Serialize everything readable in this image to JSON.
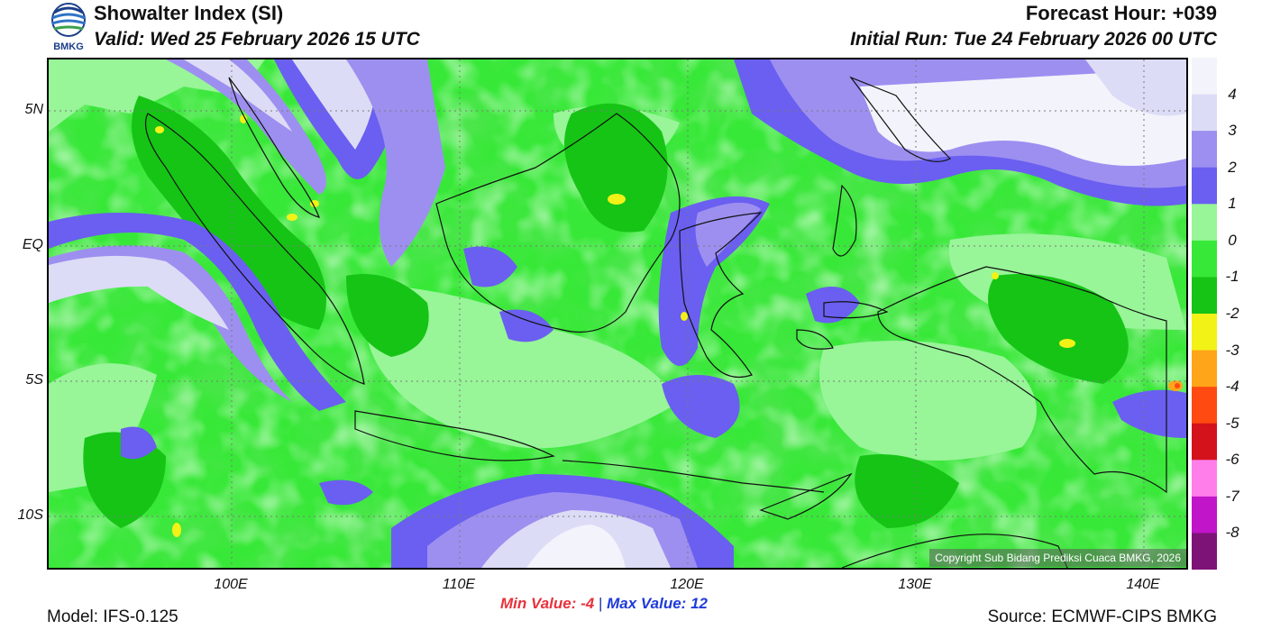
{
  "header": {
    "title": "Showalter Index (SI)",
    "valid": "Valid: Wed 25 February 2026 15 UTC",
    "forecast_hour": "Forecast Hour: +039",
    "initial_run": "Initial Run: Tue 24 February 2026 00 UTC",
    "logo_text": "BMKG"
  },
  "map": {
    "lat_labels": [
      "5N",
      "EQ",
      "5S",
      "10S"
    ],
    "lon_labels": [
      "100E",
      "110E",
      "120E",
      "130E",
      "140E"
    ],
    "copyright": "Copyright Sub Bidang Prediksi Cuaca BMKG, 2026"
  },
  "stats": {
    "min_label": "Min Value:",
    "min_value": "-4",
    "separator": "|",
    "max_label": "Max Value:",
    "max_value": "12"
  },
  "legend": {
    "labels": [
      "4",
      "3",
      "2",
      "1",
      "0",
      "-1",
      "-2",
      "-3",
      "-4",
      "-5",
      "-6",
      "-7",
      "-8"
    ],
    "colors": [
      "#f3f3fb",
      "#dcdcf6",
      "#9d8ff0",
      "#6a5ff0",
      "#98f598",
      "#38e838",
      "#16c416",
      "#f2f216",
      "#ffa51a",
      "#ff4a12",
      "#d4121c",
      "#ff7eea",
      "#c015c8",
      "#7d1376"
    ]
  },
  "footer": {
    "model": "Model: IFS-0.125",
    "source": "Source: ECMWF-CIPS BMKG"
  }
}
